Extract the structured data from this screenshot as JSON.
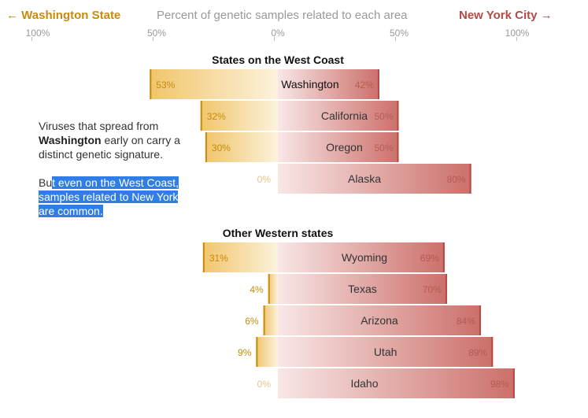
{
  "header": {
    "left_label": "← Washington State",
    "center_label": "Percent of genetic samples related to each area",
    "right_label": "New York City →"
  },
  "axis_ticks": [
    "100%",
    "50%",
    "0%",
    "50%",
    "100%"
  ],
  "annotation": {
    "p1_before": "Viruses that spread from ",
    "p1_bold": "Washington",
    "p1_after": " early on carry a distinct genetic signature.",
    "p2_plain": "Bu",
    "p2_highlight": "t even on the West Coast, samples related to New York are common."
  },
  "colors": {
    "washington": "#c98a0b",
    "new_york": "#b34a44"
  },
  "chart_data": {
    "type": "bar",
    "title": "",
    "xlabel": "Percent of genetic samples related to each area",
    "xlim": [
      -100,
      100
    ],
    "groups": [
      {
        "title": "States on the West Coast",
        "categories": [
          "Washington",
          "California",
          "Oregon",
          "Alaska"
        ],
        "series": [
          {
            "name": "Washington State",
            "values": [
              53,
              32,
              30,
              0
            ]
          },
          {
            "name": "New York City",
            "values": [
              42,
              50,
              50,
              80
            ]
          }
        ]
      },
      {
        "title": "Other Western states",
        "categories": [
          "Wyoming",
          "Texas",
          "Arizona",
          "Utah",
          "Idaho"
        ],
        "series": [
          {
            "name": "Washington State",
            "values": [
              31,
              4,
              6,
              9,
              0
            ]
          },
          {
            "name": "New York City",
            "values": [
              69,
              70,
              84,
              89,
              98
            ]
          }
        ]
      }
    ]
  }
}
